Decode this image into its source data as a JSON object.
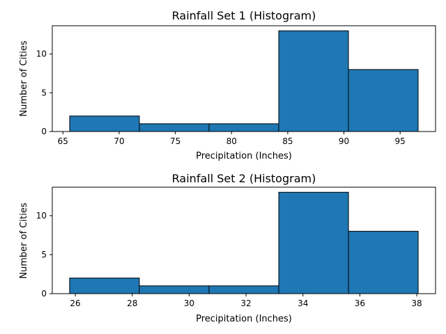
{
  "figure": {
    "bar_color": "#1f77b4",
    "edge_color": "#000000"
  },
  "chart_data": [
    {
      "type": "bar",
      "title": "Rainfall Set 1 (Histogram)",
      "xlabel": "Precipitation (Inches)",
      "ylabel": "Number of Cities",
      "bins": [
        {
          "start": 65.6,
          "end": 71.8,
          "count": 2
        },
        {
          "start": 71.8,
          "end": 78.0,
          "count": 1
        },
        {
          "start": 78.0,
          "end": 84.2,
          "count": 1
        },
        {
          "start": 84.2,
          "end": 90.4,
          "count": 13
        },
        {
          "start": 90.4,
          "end": 96.6,
          "count": 8
        }
      ],
      "xlim": [
        64.05,
        98.15
      ],
      "ylim": [
        0,
        13.65
      ],
      "xticks": [
        65,
        70,
        75,
        80,
        85,
        90,
        95
      ],
      "yticks": [
        0,
        5,
        10
      ],
      "grid": false,
      "legend": "none"
    },
    {
      "type": "bar",
      "title": "Rainfall Set 2 (Histogram)",
      "xlabel": "Precipitation (Inches)",
      "ylabel": "Number of Cities",
      "bins": [
        {
          "start": 25.8,
          "end": 28.25,
          "count": 2
        },
        {
          "start": 28.25,
          "end": 30.7,
          "count": 1
        },
        {
          "start": 30.7,
          "end": 33.15,
          "count": 1
        },
        {
          "start": 33.15,
          "end": 35.6,
          "count": 13
        },
        {
          "start": 35.6,
          "end": 38.05,
          "count": 8
        }
      ],
      "xlim": [
        25.19,
        38.66
      ],
      "ylim": [
        0,
        13.65
      ],
      "xticks": [
        26,
        28,
        30,
        32,
        34,
        36,
        38
      ],
      "yticks": [
        0,
        5,
        10
      ],
      "grid": false,
      "legend": "none"
    }
  ]
}
